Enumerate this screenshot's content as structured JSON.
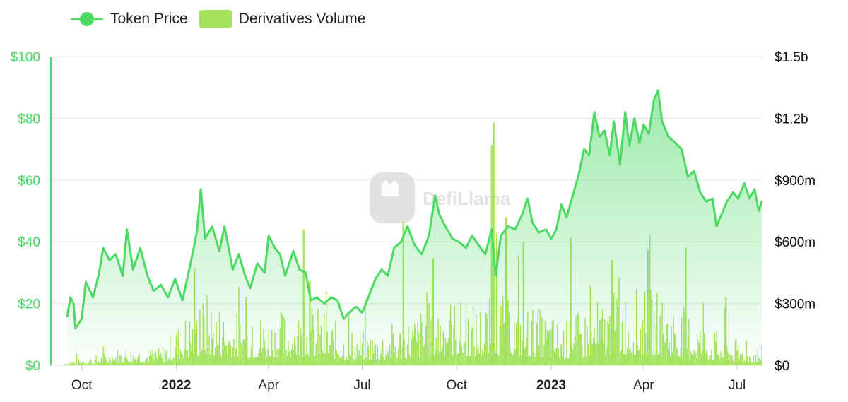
{
  "legend": {
    "price_label": "Token Price",
    "volume_label": "Derivatives Volume"
  },
  "watermark": {
    "text": "DefiLlama"
  },
  "colors": {
    "price_line": "#4cd964",
    "volume_bar": "#a6e35c",
    "left_axis": "#4cd964",
    "grid": "#e6e6e6"
  },
  "chart_data": {
    "type": "line",
    "y_left": {
      "ticks": [
        "$0",
        "$20",
        "$40",
        "$60",
        "$80",
        "$100"
      ],
      "range": [
        0,
        100
      ]
    },
    "y_right": {
      "ticks": [
        "$0",
        "$300m",
        "$600m",
        "$900m",
        "$1.2b",
        "$1.5b"
      ],
      "range": [
        0,
        1500
      ]
    },
    "x_ticks": [
      {
        "label": "Oct",
        "date": "2021-10-01",
        "bold": false
      },
      {
        "label": "2022",
        "date": "2022-01-01",
        "bold": true
      },
      {
        "label": "Apr",
        "date": "2022-04-01",
        "bold": false
      },
      {
        "label": "Jul",
        "date": "2022-07-01",
        "bold": false
      },
      {
        "label": "Oct",
        "date": "2022-10-01",
        "bold": false
      },
      {
        "label": "2023",
        "date": "2023-01-01",
        "bold": true
      },
      {
        "label": "Apr",
        "date": "2023-04-01",
        "bold": false
      },
      {
        "label": "Jul",
        "date": "2023-07-01",
        "bold": false
      }
    ],
    "x_range": [
      "2021-09-01",
      "2023-07-25"
    ],
    "grid": true,
    "legend_position": "top-left",
    "series": [
      {
        "name": "Token Price",
        "axis": "left",
        "points": [
          [
            "2021-09-17",
            16
          ],
          [
            "2021-09-20",
            22
          ],
          [
            "2021-09-23",
            20
          ],
          [
            "2021-09-25",
            12
          ],
          [
            "2021-10-01",
            15
          ],
          [
            "2021-10-05",
            27
          ],
          [
            "2021-10-12",
            22
          ],
          [
            "2021-10-18",
            30
          ],
          [
            "2021-10-22",
            38
          ],
          [
            "2021-10-28",
            34
          ],
          [
            "2021-11-03",
            36
          ],
          [
            "2021-11-10",
            29
          ],
          [
            "2021-11-14",
            44
          ],
          [
            "2021-11-20",
            31
          ],
          [
            "2021-11-27",
            38
          ],
          [
            "2021-12-04",
            29
          ],
          [
            "2021-12-10",
            24
          ],
          [
            "2021-12-17",
            26
          ],
          [
            "2021-12-24",
            22
          ],
          [
            "2021-12-31",
            28
          ],
          [
            "2022-01-07",
            21
          ],
          [
            "2022-01-15",
            33
          ],
          [
            "2022-01-21",
            43
          ],
          [
            "2022-01-25",
            57
          ],
          [
            "2022-01-29",
            41
          ],
          [
            "2022-02-05",
            45
          ],
          [
            "2022-02-12",
            37
          ],
          [
            "2022-02-17",
            45
          ],
          [
            "2022-02-25",
            31
          ],
          [
            "2022-03-03",
            36
          ],
          [
            "2022-03-09",
            29
          ],
          [
            "2022-03-14",
            25
          ],
          [
            "2022-03-21",
            33
          ],
          [
            "2022-03-28",
            30
          ],
          [
            "2022-04-01",
            42
          ],
          [
            "2022-04-07",
            38
          ],
          [
            "2022-04-12",
            36
          ],
          [
            "2022-04-17",
            29
          ],
          [
            "2022-04-25",
            37
          ],
          [
            "2022-05-01",
            31
          ],
          [
            "2022-05-07",
            30
          ],
          [
            "2022-05-12",
            21
          ],
          [
            "2022-05-18",
            22
          ],
          [
            "2022-05-25",
            20
          ],
          [
            "2022-06-01",
            22
          ],
          [
            "2022-06-07",
            21
          ],
          [
            "2022-06-13",
            15
          ],
          [
            "2022-06-18",
            17
          ],
          [
            "2022-06-25",
            19
          ],
          [
            "2022-07-01",
            17
          ],
          [
            "2022-07-07",
            22
          ],
          [
            "2022-07-14",
            28
          ],
          [
            "2022-07-20",
            31
          ],
          [
            "2022-07-26",
            29
          ],
          [
            "2022-08-01",
            38
          ],
          [
            "2022-08-08",
            40
          ],
          [
            "2022-08-14",
            45
          ],
          [
            "2022-08-21",
            39
          ],
          [
            "2022-08-28",
            36
          ],
          [
            "2022-09-04",
            42
          ],
          [
            "2022-09-10",
            55
          ],
          [
            "2022-09-14",
            49
          ],
          [
            "2022-09-20",
            45
          ],
          [
            "2022-09-27",
            41
          ],
          [
            "2022-10-03",
            40
          ],
          [
            "2022-10-10",
            38
          ],
          [
            "2022-10-16",
            42
          ],
          [
            "2022-10-22",
            39
          ],
          [
            "2022-10-29",
            36
          ],
          [
            "2022-11-04",
            44
          ],
          [
            "2022-11-08",
            29
          ],
          [
            "2022-11-13",
            42
          ],
          [
            "2022-11-20",
            45
          ],
          [
            "2022-11-27",
            44
          ],
          [
            "2022-12-04",
            49
          ],
          [
            "2022-12-09",
            54
          ],
          [
            "2022-12-14",
            46
          ],
          [
            "2022-12-20",
            43
          ],
          [
            "2022-12-27",
            44
          ],
          [
            "2023-01-01",
            41
          ],
          [
            "2023-01-06",
            44
          ],
          [
            "2023-01-11",
            52
          ],
          [
            "2023-01-16",
            48
          ],
          [
            "2023-01-22",
            55
          ],
          [
            "2023-01-28",
            62
          ],
          [
            "2023-02-02",
            70
          ],
          [
            "2023-02-07",
            68
          ],
          [
            "2023-02-12",
            82
          ],
          [
            "2023-02-17",
            74
          ],
          [
            "2023-02-22",
            76
          ],
          [
            "2023-02-27",
            68
          ],
          [
            "2023-03-03",
            79
          ],
          [
            "2023-03-09",
            65
          ],
          [
            "2023-03-14",
            82
          ],
          [
            "2023-03-18",
            71
          ],
          [
            "2023-03-23",
            80
          ],
          [
            "2023-03-28",
            72
          ],
          [
            "2023-04-01",
            78
          ],
          [
            "2023-04-06",
            75
          ],
          [
            "2023-04-11",
            86
          ],
          [
            "2023-04-15",
            89
          ],
          [
            "2023-04-19",
            79
          ],
          [
            "2023-04-25",
            74
          ],
          [
            "2023-05-02",
            72
          ],
          [
            "2023-05-08",
            70
          ],
          [
            "2023-05-14",
            61
          ],
          [
            "2023-05-20",
            63
          ],
          [
            "2023-05-26",
            56
          ],
          [
            "2023-06-01",
            53
          ],
          [
            "2023-06-07",
            54
          ],
          [
            "2023-06-11",
            45
          ],
          [
            "2023-06-16",
            49
          ],
          [
            "2023-06-21",
            53
          ],
          [
            "2023-06-27",
            56
          ],
          [
            "2023-07-02",
            54
          ],
          [
            "2023-07-08",
            59
          ],
          [
            "2023-07-13",
            54
          ],
          [
            "2023-07-18",
            57
          ],
          [
            "2023-07-22",
            50
          ],
          [
            "2023-07-25",
            53
          ]
        ]
      },
      {
        "name": "Derivatives Volume",
        "axis": "right",
        "type": "bar",
        "unit": "$m",
        "levels": [
          [
            "2021-09-15",
            12
          ],
          [
            "2021-10-15",
            28
          ],
          [
            "2021-11-15",
            55
          ],
          [
            "2021-12-15",
            45
          ],
          [
            "2022-01-10",
            140
          ],
          [
            "2022-02-01",
            200
          ],
          [
            "2022-02-20",
            150
          ],
          [
            "2022-03-15",
            140
          ],
          [
            "2022-04-15",
            150
          ],
          [
            "2022-05-15",
            165
          ],
          [
            "2022-06-15",
            100
          ],
          [
            "2022-07-15",
            95
          ],
          [
            "2022-08-15",
            130
          ],
          [
            "2022-09-15",
            195
          ],
          [
            "2022-10-15",
            165
          ],
          [
            "2022-11-15",
            190
          ],
          [
            "2022-12-15",
            160
          ],
          [
            "2023-01-15",
            120
          ],
          [
            "2023-02-15",
            175
          ],
          [
            "2023-03-15",
            210
          ],
          [
            "2023-04-15",
            200
          ],
          [
            "2023-05-15",
            150
          ],
          [
            "2023-06-15",
            85
          ],
          [
            "2023-07-15",
            55
          ]
        ],
        "spikes": [
          [
            "2022-03-10",
            330
          ],
          [
            "2022-05-05",
            660
          ],
          [
            "2022-05-11",
            410
          ],
          [
            "2022-08-10",
            700
          ],
          [
            "2022-09-08",
            520
          ],
          [
            "2022-11-04",
            1070
          ],
          [
            "2022-11-06",
            1180
          ],
          [
            "2022-11-09",
            640
          ],
          [
            "2022-11-18",
            720
          ],
          [
            "2022-12-05",
            600
          ],
          [
            "2023-01-20",
            620
          ],
          [
            "2023-03-01",
            510
          ],
          [
            "2023-04-05",
            560
          ],
          [
            "2023-05-12",
            570
          ],
          [
            "2023-06-20",
            330
          ]
        ]
      }
    ]
  }
}
